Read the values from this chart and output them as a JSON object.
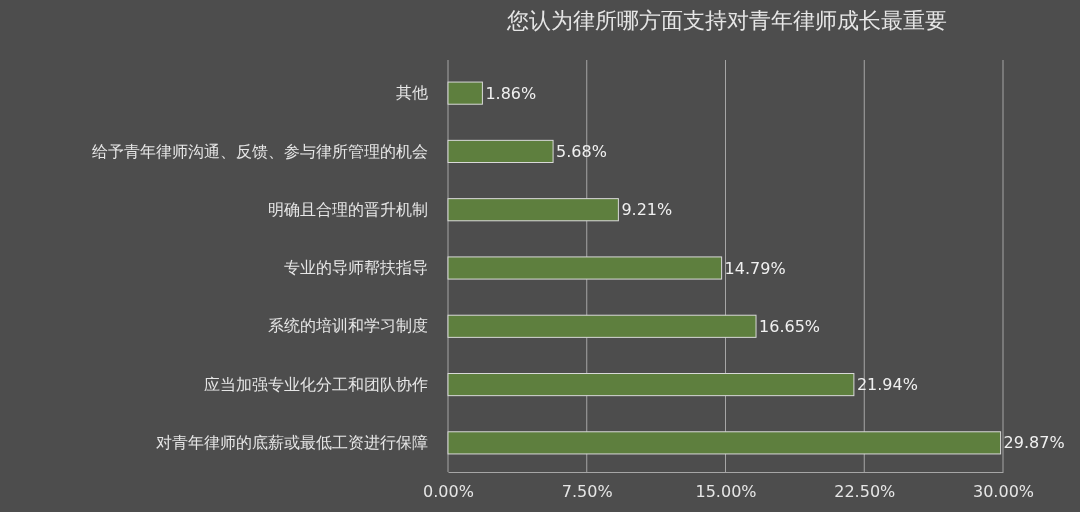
{
  "chart_data": {
    "type": "bar",
    "orientation": "horizontal",
    "title": "您认为律所哪方面支持对青年律师成长最重要",
    "categories": [
      "其他",
      "给予青年律师沟通、反馈、参与律所管理的机会",
      "明确且合理的晋升机制",
      "专业的导师帮扶指导",
      "系统的培训和学习制度",
      "应当加强专业化分工和团队协作",
      "对青年律师的底薪或最低工资进行保障"
    ],
    "values": [
      1.86,
      5.68,
      9.21,
      14.79,
      16.65,
      21.94,
      29.87
    ],
    "value_labels": [
      "1.86%",
      "5.68%",
      "9.21%",
      "14.79%",
      "16.65%",
      "21.94%",
      "29.87%"
    ],
    "color": "#5e7f3e",
    "xlim": [
      0,
      30
    ],
    "xticks": [
      {
        "value": 0,
        "label": "0.00%"
      },
      {
        "value": 7.5,
        "label": "7.50%"
      },
      {
        "value": 15,
        "label": "15.00%"
      },
      {
        "value": 22.5,
        "label": "22.50%"
      },
      {
        "value": 30,
        "label": "30.00%"
      }
    ],
    "grid": "x"
  }
}
